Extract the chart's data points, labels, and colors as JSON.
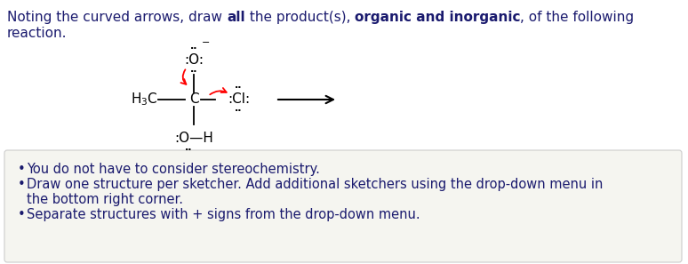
{
  "bg_color": "#ffffff",
  "box_bg_color": "#f5f5f0",
  "text_color": "#1a1a1a",
  "dark_blue": "#1a1a6e",
  "bullet_points": [
    "You do not have to consider stereochemistry.",
    "Draw one structure per sketcher. Add additional sketchers using the drop-down menu in\nthe bottom right corner.",
    "Separate structures with + signs from the drop-down menu."
  ],
  "font_size_title": 11,
  "font_size_mol": 11,
  "font_size_bullet": 10.5,
  "font_size_dots": 8
}
